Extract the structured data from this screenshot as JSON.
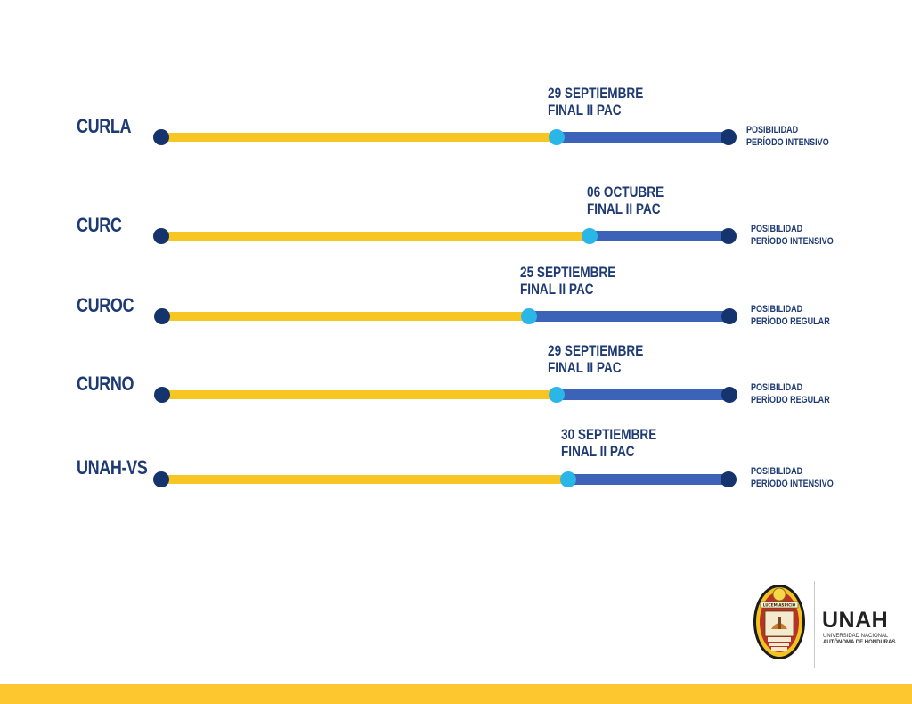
{
  "colors": {
    "past_segment": "#f7c623",
    "future_segment": "#3d63b8",
    "endpoint_dot": "#15346d",
    "milestone_dot": "#2bb6e8",
    "text": "#1e3a73",
    "footer_band": "#fdc82f"
  },
  "timelines": [
    {
      "campus": "CURLA",
      "milestone_line1": "29 SEPTIEMBRE",
      "milestone_line2": "FINAL II PAC",
      "outcome_line1": "POSIBILIDAD",
      "outcome_line2": "PERÍODO INTENSIVO"
    },
    {
      "campus": "CURC",
      "milestone_line1": "06 OCTUBRE",
      "milestone_line2": "FINAL II PAC",
      "outcome_line1": "POSIBILIDAD",
      "outcome_line2": "PERÍODO INTENSIVO"
    },
    {
      "campus": "CUROC",
      "milestone_line1": "25 SEPTIEMBRE",
      "milestone_line2": "FINAL II PAC",
      "outcome_line1": "POSIBILIDAD",
      "outcome_line2": "PERÍODO REGULAR"
    },
    {
      "campus": "CURNO",
      "milestone_line1": "29 SEPTIEMBRE",
      "milestone_line2": "FINAL II PAC",
      "outcome_line1": "POSIBILIDAD",
      "outcome_line2": "PERÍODO REGULAR"
    },
    {
      "campus": "UNAH-VS",
      "milestone_line1": "30 SEPTIEMBRE",
      "milestone_line2": "FINAL II PAC",
      "outcome_line1": "POSIBILIDAD",
      "outcome_line2": "PERÍODO INTENSIVO"
    }
  ],
  "logo": {
    "seal_motto": "LUCEM ASPICIO",
    "seal_year": "1847",
    "wordmark": "UNAH",
    "subtitle_line1": "UNIVERSIDAD NACIONAL",
    "subtitle_line2": "AUTÓNOMA DE HONDURAS"
  }
}
